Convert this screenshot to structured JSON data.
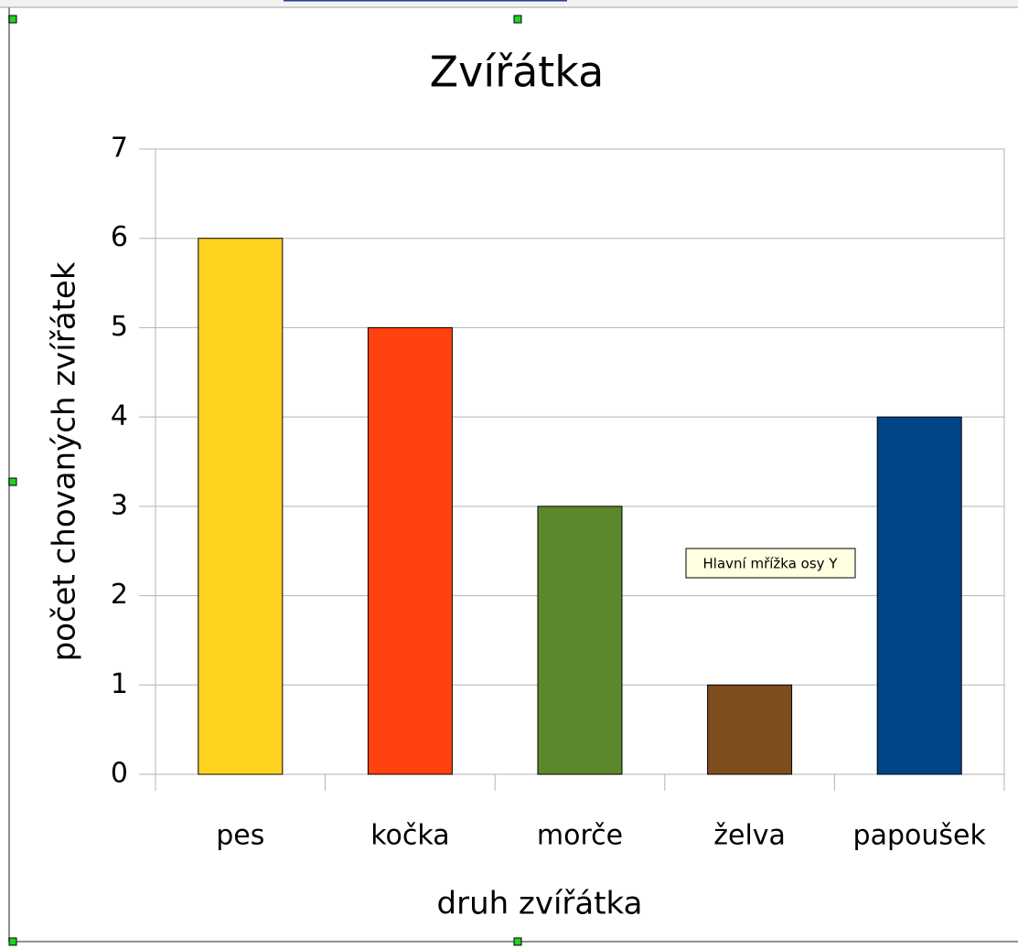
{
  "chart_data": {
    "type": "bar",
    "title": "Zvířátka",
    "x_label": "druh zvířátka",
    "y_label": "počet chovaných zvířátek",
    "categories": [
      "pes",
      "kočka",
      "morče",
      "želva",
      "papoušek"
    ],
    "values": [
      6,
      5,
      3,
      1,
      4
    ],
    "colors": [
      "#ffd320",
      "#ff420e",
      "#5c882b",
      "#7e4e1e",
      "#004586"
    ],
    "ylim": [
      0,
      7
    ],
    "yticks": [
      0,
      1,
      2,
      3,
      4,
      5,
      6,
      7
    ],
    "grid": true,
    "tooltip": "Hlavní mřížka osy Y"
  }
}
